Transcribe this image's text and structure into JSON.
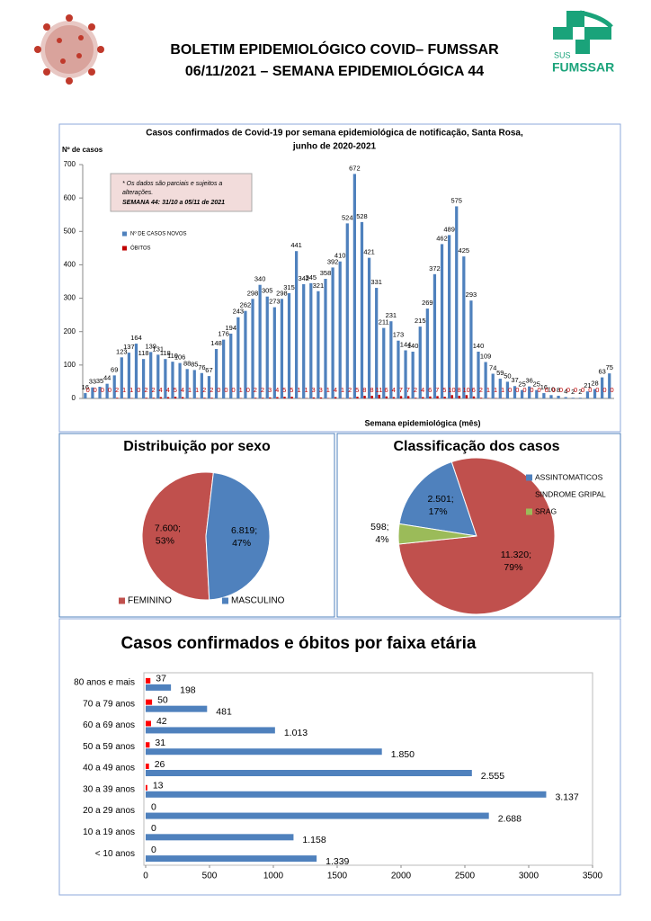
{
  "header": {
    "title_lines": [
      "BOLETIM EPIDEMIOLÓGICO COVID– FUMSSAR",
      "06/11/2021 – SEMANA EPIDEMIOLÓGICA 44"
    ],
    "logo_text": [
      "SUS",
      "FUMSSAR"
    ]
  },
  "chart_data": [
    {
      "type": "bar",
      "title_lines": [
        "Casos confirmados de Covid-19 por semana epidemiológica de notificação,  Santa Rosa,",
        "junho  de 2020-2021"
      ],
      "y_label": "Nº de casos",
      "x_label": "Semana epidemiológica (mês)",
      "note_lines": [
        "* Os dados são parciais e sujeitos a",
        "alterações."
      ],
      "note_highlight": "SEMANA 44: 31/10  a 05/11 de 2021",
      "categories": [
        null,
        null,
        null,
        null,
        null,
        null,
        null,
        null,
        null,
        null,
        null,
        null,
        null,
        null,
        null,
        null,
        null,
        null,
        null,
        null,
        null,
        null,
        null,
        null,
        null,
        null,
        null,
        null,
        null,
        null,
        null,
        null,
        null,
        null,
        null,
        null,
        null,
        null,
        null,
        null,
        null,
        null,
        null,
        null,
        null,
        null,
        null,
        null,
        null,
        null,
        null,
        null,
        null,
        null,
        null,
        null,
        null,
        null,
        null,
        null,
        null,
        null,
        null,
        null,
        null,
        null,
        null,
        null,
        null,
        null,
        null,
        null,
        null
      ],
      "series": [
        {
          "name": "Nº DE CASOS NOVOS",
          "color": "#4f81bd",
          "values": [
            16,
            33,
            35,
            44,
            69,
            123,
            137,
            164,
            118,
            139,
            131,
            118,
            110,
            106,
            88,
            85,
            76,
            67,
            148,
            176,
            194,
            243,
            262,
            298,
            340,
            305,
            273,
            298,
            315,
            441,
            342,
            345,
            321,
            358,
            392,
            410,
            524,
            672,
            528,
            421,
            331,
            211,
            231,
            173,
            144,
            140,
            215,
            269,
            372,
            462,
            489,
            575,
            425,
            293,
            140,
            109,
            74,
            59,
            50,
            37,
            25,
            36,
            25,
            16,
            10,
            8,
            4,
            2,
            2,
            21,
            28,
            63,
            75
          ]
        },
        {
          "name": "ÓBITOS",
          "color": "#c00000",
          "values": [
            0,
            0,
            0,
            0,
            2,
            1,
            1,
            0,
            2,
            2,
            4,
            4,
            5,
            4,
            1,
            1,
            2,
            2,
            0,
            0,
            0,
            1,
            0,
            2,
            2,
            3,
            4,
            5,
            5,
            1,
            1,
            3,
            3,
            1,
            4,
            1,
            2,
            5,
            8,
            8,
            11,
            6,
            4,
            7,
            7,
            2,
            4,
            6,
            7,
            5,
            10,
            8,
            10,
            6,
            2,
            1,
            1,
            1,
            0,
            0,
            0,
            0,
            0,
            0,
            0,
            0,
            0,
            0,
            0,
            0,
            0,
            0,
            0
          ]
        }
      ],
      "ylim": [
        0,
        700
      ],
      "yticks": [
        0,
        100,
        200,
        300,
        400,
        500,
        600,
        700
      ]
    },
    {
      "type": "pie",
      "title": "Distribuição por sexo",
      "categories": [
        "FEMININO",
        "MASCULINO"
      ],
      "values": [
        7600,
        6819
      ],
      "value_labels": [
        "7.600;",
        "6.819;"
      ],
      "percents": [
        53,
        47
      ],
      "percent_labels": [
        "53%",
        "47%"
      ],
      "colors": [
        "#c0504d",
        "#4f81bd"
      ],
      "legend": "bottom"
    },
    {
      "type": "pie",
      "title": "Classificação dos casos",
      "categories": [
        "ASSINTOMATICOS",
        "SINDROME GRIPAL",
        "SRAG"
      ],
      "values": [
        2501,
        11320,
        598
      ],
      "value_labels": [
        "2.501;",
        "11.320;",
        "598;"
      ],
      "percents": [
        17,
        79,
        4
      ],
      "percent_labels": [
        "17%",
        "79%",
        "4%"
      ],
      "colors": [
        "#4f81bd",
        "#c0504d",
        "#9bbb59"
      ],
      "legend": "right"
    },
    {
      "type": "hbar",
      "title": "Casos confirmados e óbitos  por faixa etária",
      "categories": [
        "80 anos e mais",
        "70 a 79 anos",
        "60 a 69 anos",
        "50 a 59 anos",
        "40 a 49 anos",
        "30 a 39 anos",
        "20 a 29 anos",
        "10 a 19 anos",
        "< 10 anos"
      ],
      "series": [
        {
          "color": "#4f81bd",
          "values": [
            198,
            481,
            1013,
            1850,
            2555,
            3137,
            2688,
            1158,
            1339
          ],
          "value_labels": [
            "198",
            "481",
            "1.013",
            "1.850",
            "2.555",
            "3.137",
            "2.688",
            "1.158",
            "1.339"
          ]
        },
        {
          "color": "#ff0000",
          "values": [
            37,
            50,
            42,
            31,
            26,
            13,
            0,
            0,
            0
          ]
        }
      ],
      "xlim": [
        0,
        3500
      ],
      "xticks": [
        0,
        500,
        1000,
        1500,
        2000,
        2500,
        3000,
        3500
      ],
      "grid": false
    }
  ]
}
